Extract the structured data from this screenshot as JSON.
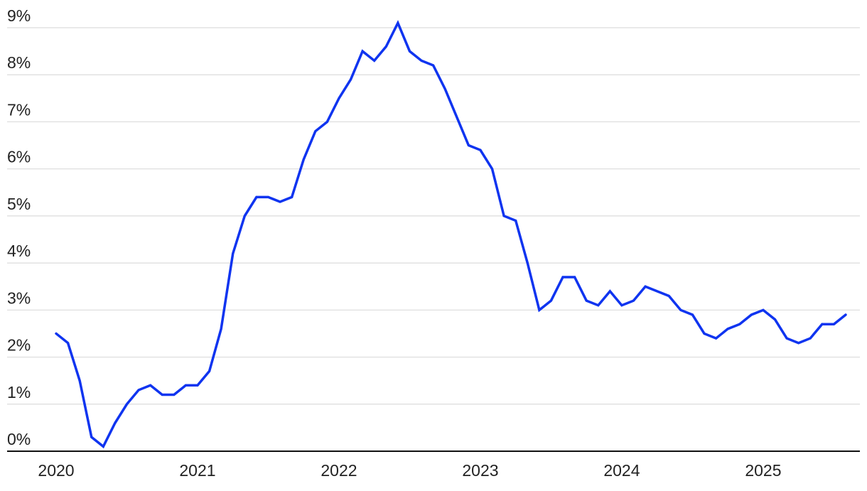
{
  "chart_data": {
    "type": "line",
    "categories": [
      "2020",
      null,
      null,
      null,
      null,
      null,
      null,
      null,
      null,
      null,
      null,
      null,
      "2021",
      null,
      null,
      null,
      null,
      null,
      null,
      null,
      null,
      null,
      null,
      null,
      "2022",
      null,
      null,
      null,
      null,
      null,
      null,
      null,
      null,
      null,
      null,
      null,
      "2023",
      null,
      null,
      null,
      null,
      null,
      null,
      null,
      null,
      null,
      null,
      null,
      "2024",
      null,
      null,
      null,
      null,
      null,
      null,
      null,
      null,
      null,
      null,
      null,
      "2025",
      null,
      null,
      null,
      null,
      null,
      null,
      null
    ],
    "values": [
      2.5,
      2.3,
      1.5,
      0.3,
      0.1,
      0.6,
      1.0,
      1.3,
      1.4,
      1.2,
      1.2,
      1.4,
      1.4,
      1.7,
      2.6,
      4.2,
      5.0,
      5.4,
      5.4,
      5.3,
      5.4,
      6.2,
      6.8,
      7.0,
      7.5,
      7.9,
      8.5,
      8.3,
      8.6,
      9.1,
      8.5,
      8.3,
      8.2,
      7.7,
      7.1,
      6.5,
      6.4,
      6.0,
      5.0,
      4.9,
      4.0,
      3.0,
      3.2,
      3.7,
      3.7,
      3.2,
      3.1,
      3.4,
      3.1,
      3.2,
      3.5,
      3.4,
      3.3,
      3.0,
      2.9,
      2.5,
      2.4,
      2.6,
      2.7,
      2.9,
      3.0,
      2.8,
      2.4,
      2.3,
      2.4,
      2.7,
      2.7,
      2.9
    ],
    "color": "#0f34f0",
    "ylim": [
      0,
      9
    ],
    "yticks": [
      {
        "value": 0,
        "label": "0%"
      },
      {
        "value": 1,
        "label": "1%"
      },
      {
        "value": 2,
        "label": "2%"
      },
      {
        "value": 3,
        "label": "3%"
      },
      {
        "value": 4,
        "label": "4%"
      },
      {
        "value": 5,
        "label": "5%"
      },
      {
        "value": 6,
        "label": "6%"
      },
      {
        "value": 7,
        "label": "7%"
      },
      {
        "value": 8,
        "label": "8%"
      },
      {
        "value": 9,
        "label": "9%"
      }
    ],
    "grid": true
  }
}
